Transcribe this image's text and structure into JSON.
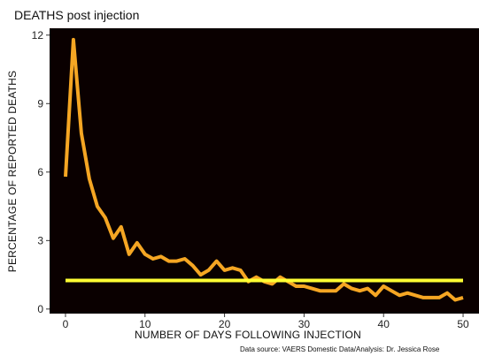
{
  "chart_data": {
    "type": "line",
    "title": "DEATHS post injection",
    "xlabel": "NUMBER OF DAYS FOLLOWING INJECTION",
    "ylabel": "PERCENTAGE OF REPORTED DEATHS",
    "caption": "Data source: VAERS Domestic Data/Analysis: Dr. Jessica Rose",
    "xlim": [
      -2,
      52
    ],
    "ylim": [
      -0.2,
      12.3
    ],
    "xticks": [
      0,
      10,
      20,
      30,
      40,
      50
    ],
    "yticks": [
      0,
      3,
      6,
      9,
      12
    ],
    "background": "#0a0000",
    "grid": false,
    "legend": "none",
    "series": [
      {
        "color": "#f5a623",
        "x": [
          0,
          1,
          2,
          3,
          4,
          5,
          6,
          7,
          8,
          9,
          10,
          11,
          12,
          13,
          14,
          15,
          16,
          17,
          18,
          19,
          20,
          21,
          22,
          23,
          24,
          25,
          26,
          27,
          28,
          29,
          30,
          31,
          32,
          33,
          34,
          35,
          36,
          37,
          38,
          39,
          40,
          41,
          42,
          43,
          44,
          45,
          46,
          47,
          48,
          49,
          50
        ],
        "values": [
          5.8,
          11.8,
          7.7,
          5.7,
          4.5,
          4.0,
          3.1,
          3.6,
          2.4,
          2.9,
          2.4,
          2.2,
          2.3,
          2.1,
          2.1,
          2.2,
          1.9,
          1.5,
          1.7,
          2.1,
          1.7,
          1.8,
          1.7,
          1.2,
          1.4,
          1.2,
          1.1,
          1.4,
          1.2,
          1.0,
          1.0,
          0.9,
          0.8,
          0.8,
          0.8,
          1.1,
          0.9,
          0.8,
          0.9,
          0.6,
          1.0,
          0.8,
          0.6,
          0.7,
          0.6,
          0.5,
          0.5,
          0.5,
          0.7,
          0.4,
          0.5
        ]
      },
      {
        "color": "#ffff33",
        "x": [
          0,
          50
        ],
        "values": [
          1.25,
          1.25
        ]
      }
    ]
  }
}
